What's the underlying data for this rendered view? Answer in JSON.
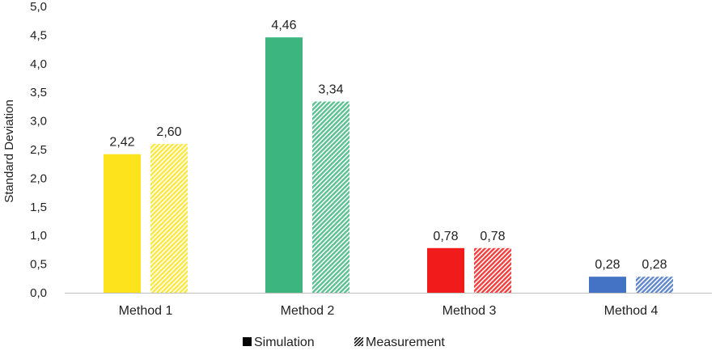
{
  "chart_data": {
    "type": "bar",
    "title": "",
    "xlabel": "",
    "ylabel": "Standard Deviation",
    "ylim": [
      0,
      5
    ],
    "ytick_step": 0.5,
    "yticks": [
      "0,0",
      "0,5",
      "1,0",
      "1,5",
      "2,0",
      "2,5",
      "3,0",
      "3,5",
      "4,0",
      "4,5",
      "5,0"
    ],
    "grid": false,
    "legend_position": "bottom-center",
    "categories": [
      "Method 1",
      "Method 2",
      "Method 3",
      "Method 4"
    ],
    "category_colors": [
      "#FCE31C",
      "#3DB57E",
      "#F11B1B",
      "#4472C4"
    ],
    "series": [
      {
        "name": "Simulation",
        "style": "solid",
        "values": [
          2.42,
          4.46,
          0.78,
          0.28
        ],
        "labels": [
          "2,42",
          "4,46",
          "0,78",
          "0,28"
        ]
      },
      {
        "name": "Measurement",
        "style": "hatched",
        "values": [
          2.6,
          3.34,
          0.78,
          0.28
        ],
        "labels": [
          "2,60",
          "3,34",
          "0,78",
          "0,28"
        ]
      }
    ]
  }
}
